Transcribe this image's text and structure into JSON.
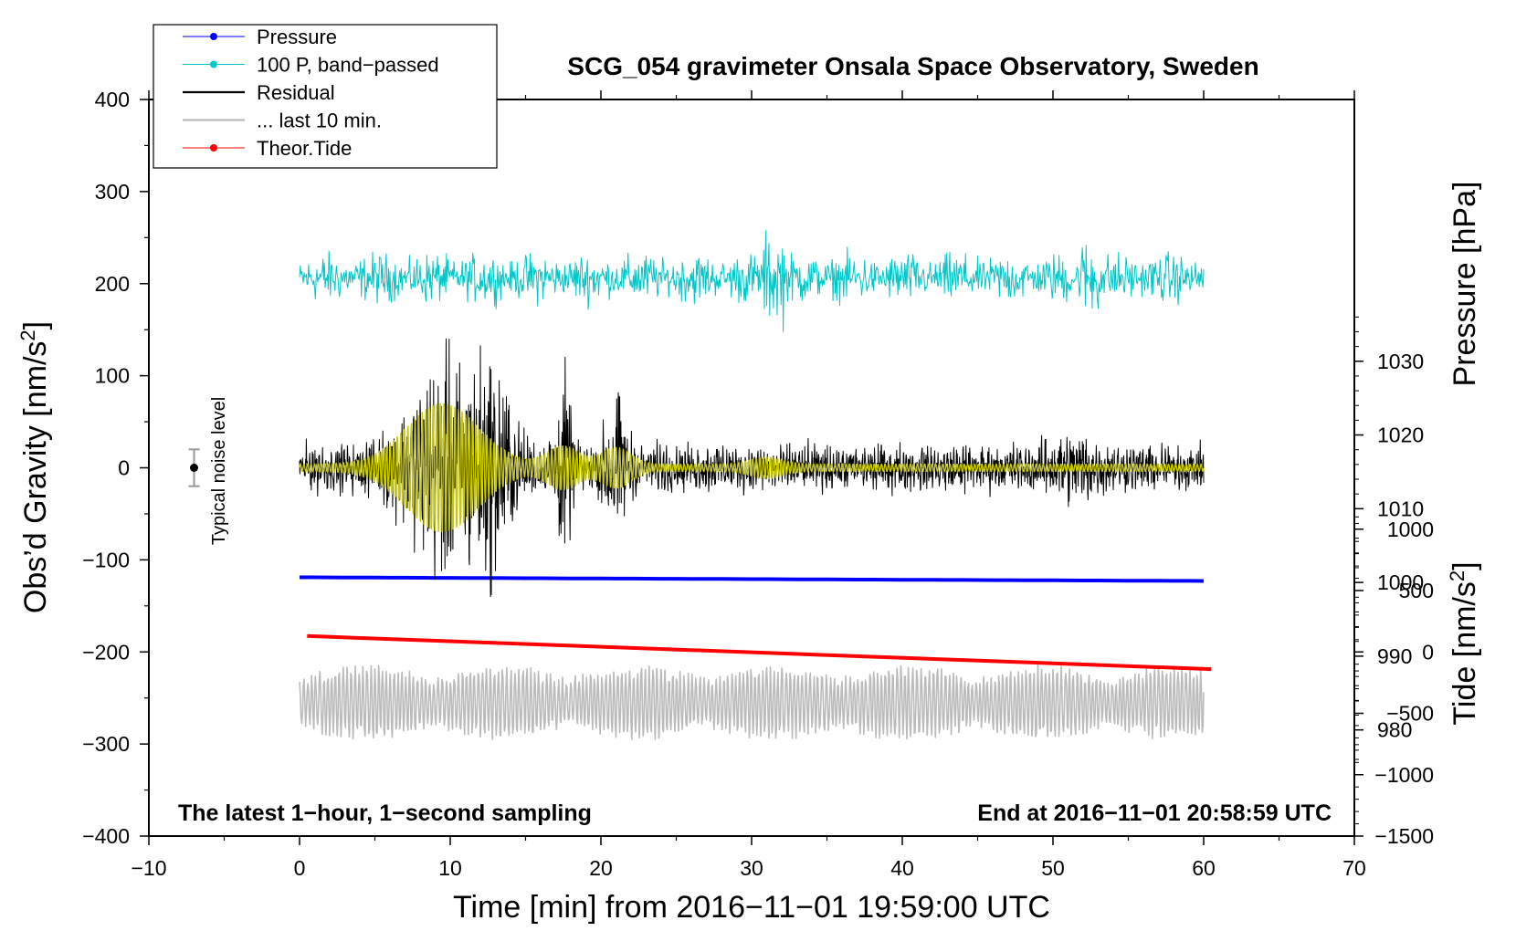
{
  "chart_data": {
    "type": "line",
    "title": "SCG_054 gravimeter Onsala Space Observatory, Sweden",
    "xlabel": "Time [min] from 2016−11−01 19:59:00 UTC",
    "ylabel_left_main": "Obs’d Gravity [nm/s",
    "ylabel_left_sup": "2",
    "ylabel_left_end": "]",
    "ylabel_right_top": "Pressure [hPa]",
    "ylabel_right_bottom_main": "Tide [nm/s",
    "ylabel_right_bottom_sup": "2",
    "ylabel_right_bottom_end": "]",
    "footer_left": "The latest 1−hour, 1−second sampling",
    "footer_right": "End at 2016−11−01 20:58:59 UTC",
    "noise_label": "Typical noise level",
    "xlim": [
      -10,
      70
    ],
    "ylim": [
      -400,
      400
    ],
    "pressure_lim": [
      965.6,
      1065.5
    ],
    "tide_lim": [
      -1500,
      4500
    ],
    "x_ticks": [
      "−10",
      "0",
      "10",
      "20",
      "30",
      "40",
      "50",
      "60",
      "70"
    ],
    "y_ticks": [
      "−400",
      "−300",
      "−200",
      "−100",
      "0",
      "100",
      "200",
      "300",
      "400"
    ],
    "pressure_ticks": [
      "980",
      "990",
      "1000",
      "1010",
      "1020",
      "1030"
    ],
    "tide_ticks": [
      "−1500",
      "−1000",
      "−500",
      "0",
      "500",
      "1000"
    ],
    "legend": [
      {
        "label": "Pressure",
        "color": "#0000ff",
        "marker": true
      },
      {
        "label": "100 P, band−passed",
        "color": "#00c8c8",
        "marker": true
      },
      {
        "label": "Residual",
        "color": "#000000",
        "marker": false
      },
      {
        "label": "... last 10 min.",
        "color": "#bbbbbb",
        "marker": false
      },
      {
        "label": "Theor.Tide",
        "color": "#ff0000",
        "marker": true
      }
    ],
    "series": [
      {
        "name": "Pressure",
        "axis": "pressure",
        "color": "#0000ff",
        "x_range": [
          0,
          60
        ],
        "values_start_end": [
          1000.7,
          1000.2
        ]
      },
      {
        "name": "100 P, band-passed",
        "axis": "gravity",
        "color": "#00c8c8",
        "baseline": 200,
        "amplitude_approx": 20
      },
      {
        "name": "Residual",
        "axis": "gravity",
        "color": "#000000",
        "baseline": 0,
        "peak_range": [
          -140,
          140
        ]
      },
      {
        "name": "Residual, band-passed",
        "axis": "gravity",
        "color": "#c8c800",
        "baseline": 0,
        "peak_range": [
          -70,
          70
        ]
      },
      {
        "name": "... last 10 min.",
        "axis": "gravity",
        "color": "#bbbbbb",
        "baseline": -255,
        "peak_range": [
          -295,
          -205
        ]
      },
      {
        "name": "Theor.Tide",
        "axis": "tide",
        "color": "#ff0000",
        "x_range": [
          0.5,
          60.5
        ],
        "values_start_end": [
          130,
          -140
        ]
      }
    ],
    "noise_bar": {
      "x": -7,
      "y": 0,
      "range": [
        -20,
        20
      ]
    }
  }
}
